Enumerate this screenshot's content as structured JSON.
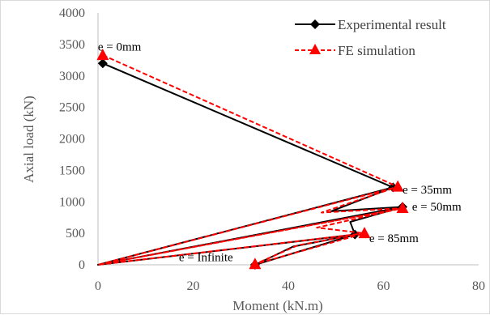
{
  "chart_data": {
    "type": "scatter",
    "title": "",
    "xlabel": "Moment (kN.m)",
    "ylabel": "Axial load (kN)",
    "xlim": [
      0,
      80
    ],
    "ylim": [
      0,
      4000
    ],
    "xticks": [
      0,
      20,
      40,
      60,
      80
    ],
    "yticks": [
      0,
      500,
      1000,
      1500,
      2000,
      2500,
      3000,
      3500,
      4000
    ],
    "grid": false,
    "legend_position": "top-right",
    "series": [
      {
        "name": "Experimental result",
        "color": "#000000",
        "marker": "diamond",
        "line": "solid",
        "points": [
          [
            1,
            3200
          ],
          [
            62,
            1230
          ],
          [
            0,
            0
          ],
          [
            62,
            1230
          ],
          [
            49,
            850
          ],
          [
            64,
            920
          ],
          [
            0,
            0
          ],
          [
            64,
            920
          ],
          [
            53,
            680
          ],
          [
            54,
            480
          ],
          [
            0,
            0
          ],
          [
            54,
            480
          ],
          [
            41,
            290
          ],
          [
            33,
            0
          ],
          [
            54,
            480
          ]
        ]
      },
      {
        "name": "FE simulation",
        "color": "#ff0000",
        "marker": "triangle",
        "line": "dashed",
        "points": [
          [
            1,
            3330
          ],
          [
            63,
            1240
          ],
          [
            0,
            0
          ],
          [
            63,
            1240
          ],
          [
            47,
            830
          ],
          [
            64,
            900
          ],
          [
            0,
            0
          ],
          [
            64,
            900
          ],
          [
            46,
            590
          ],
          [
            56,
            500
          ],
          [
            0,
            0
          ],
          [
            56,
            500
          ],
          [
            42,
            310
          ],
          [
            33,
            10
          ],
          [
            56,
            500
          ]
        ]
      }
    ],
    "annotations": [
      {
        "text": "e = 0mm",
        "x": 1,
        "y": 3400
      },
      {
        "text": "e = 35mm",
        "x": 64,
        "y": 1130
      },
      {
        "text": "e = 50mm",
        "x": 66,
        "y": 860
      },
      {
        "text": "e = 85mm",
        "x": 57,
        "y": 360
      },
      {
        "text": "e = Infinite",
        "x": 17,
        "y": 60
      }
    ]
  }
}
